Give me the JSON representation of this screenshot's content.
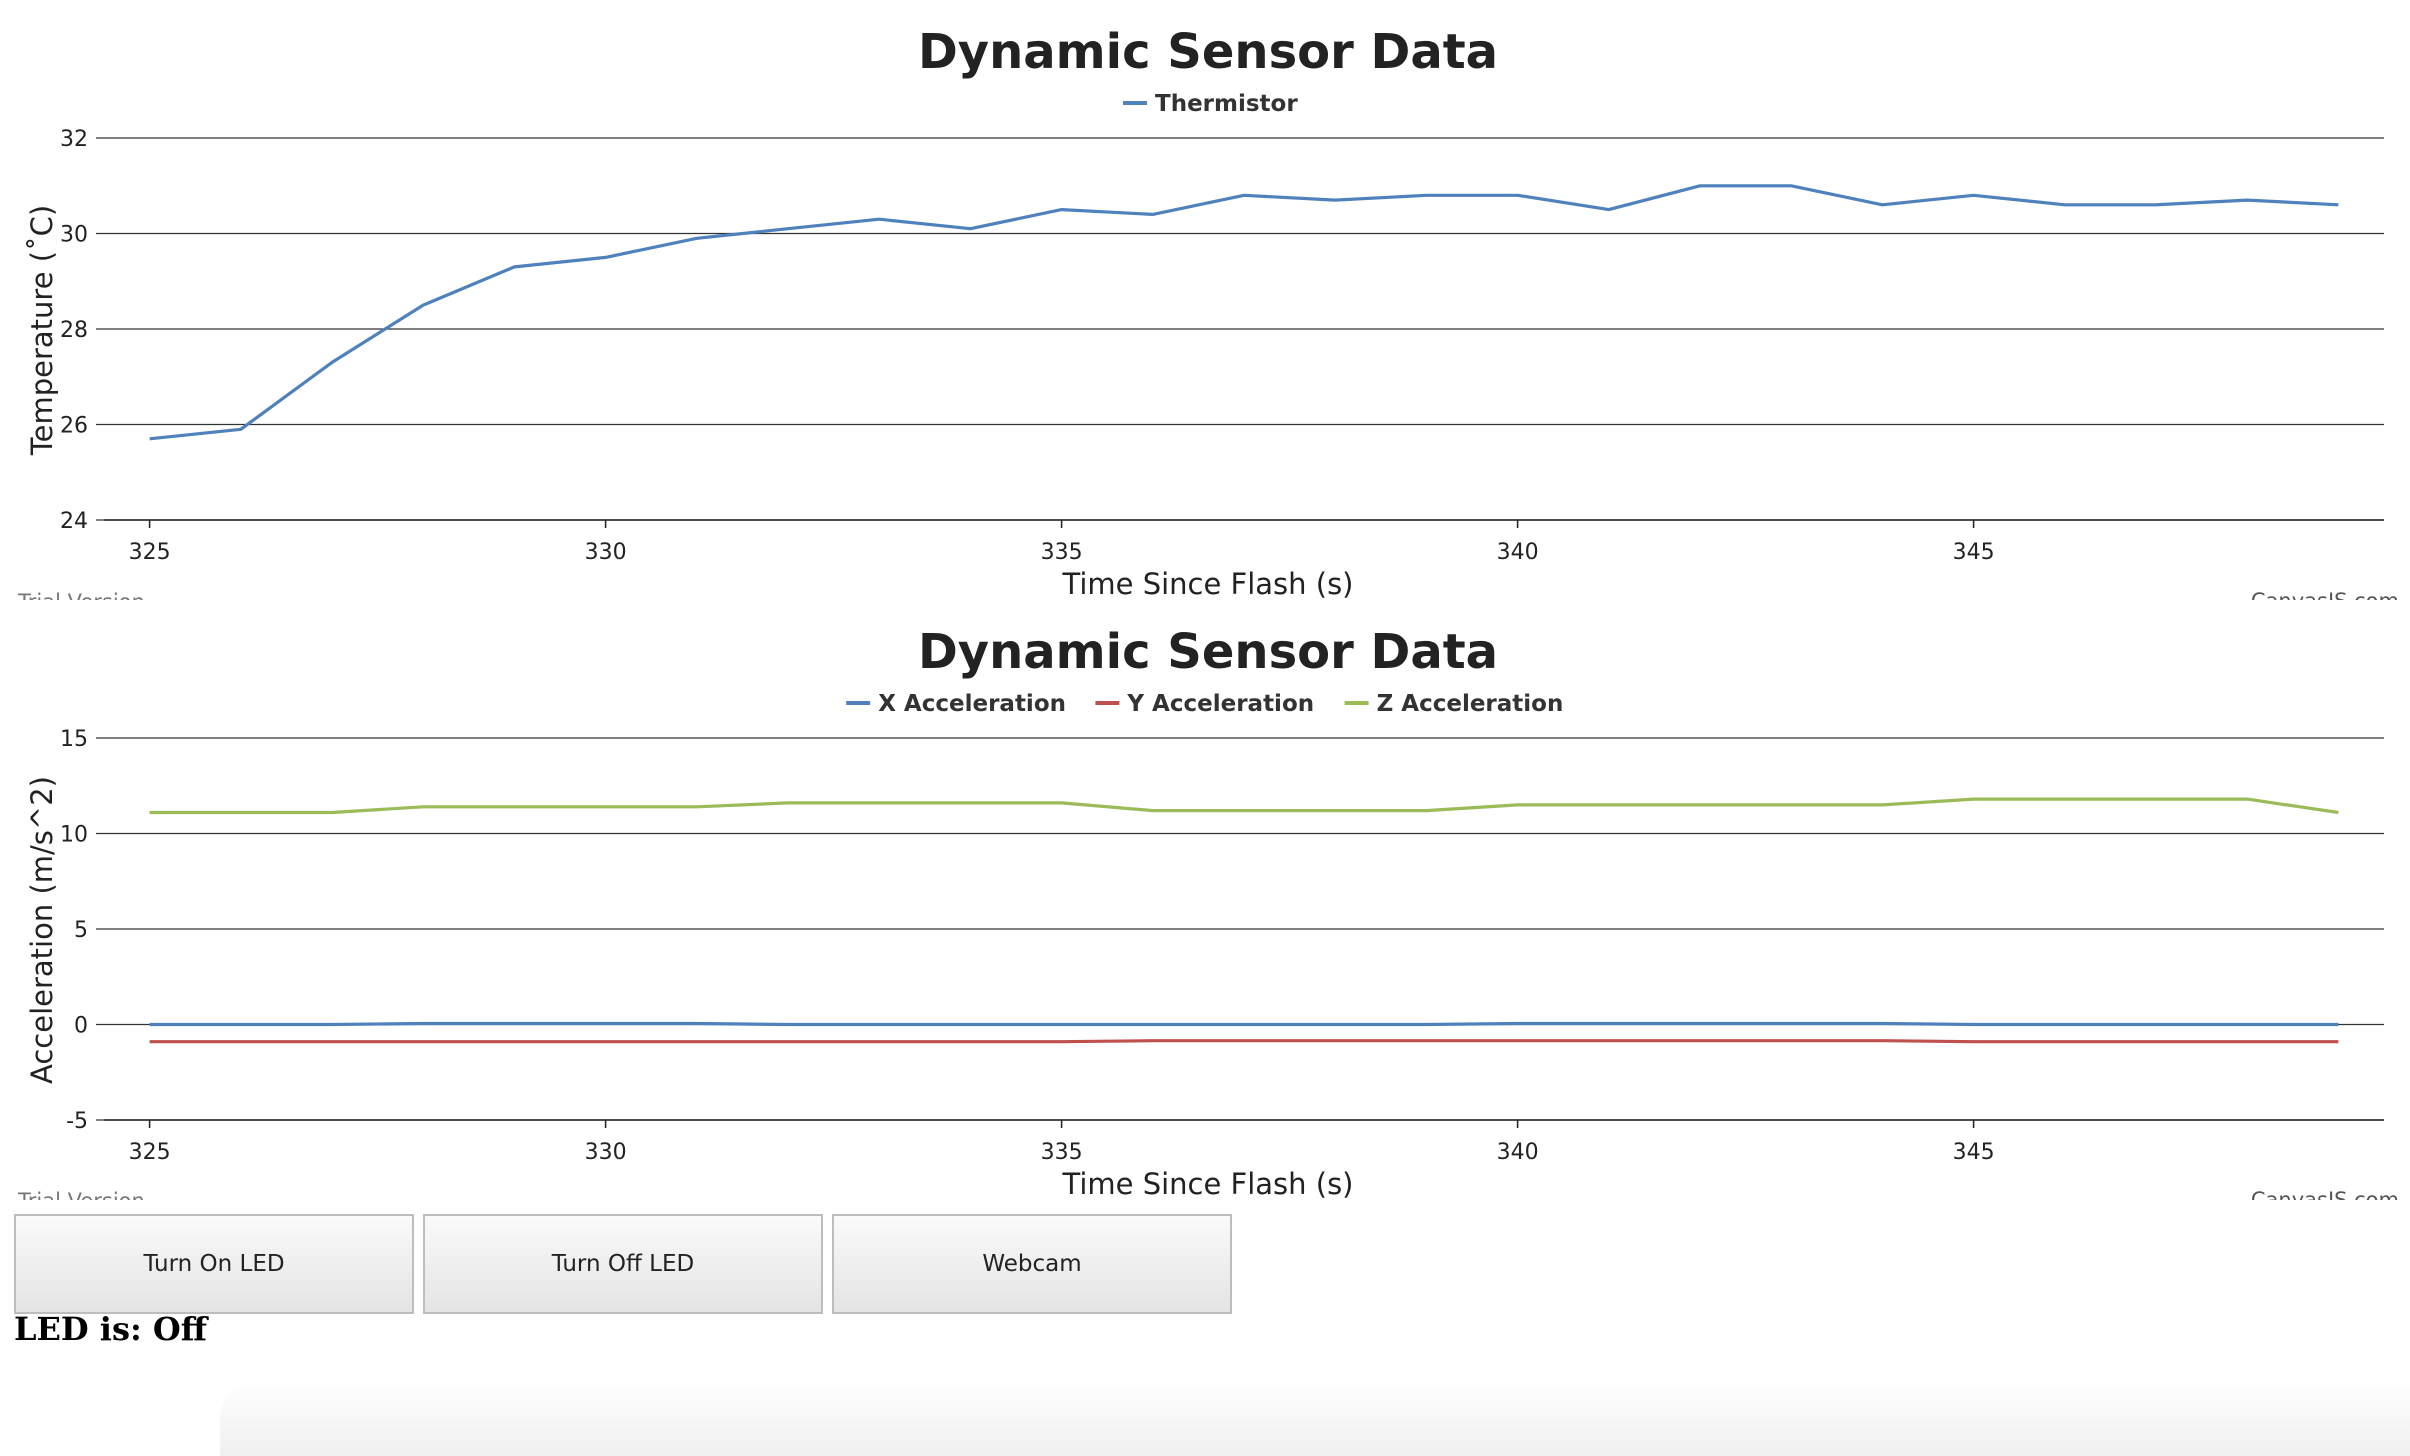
{
  "charts": [
    {
      "title": "Dynamic Sensor Data",
      "credit_left": "Trial Version",
      "credit_right": "CanvasJS.com",
      "chart_data": {
        "type": "line",
        "title": "Dynamic Sensor Data",
        "xlabel": "Time Since Flash (s)",
        "ylabel": "Temperature (˚C)",
        "xlim": [
          324.5,
          349.5
        ],
        "ylim": [
          24,
          32
        ],
        "x_ticks": [
          325,
          330,
          335,
          340,
          345
        ],
        "y_ticks": [
          24,
          26,
          28,
          30,
          32
        ],
        "grid": true,
        "legend_position": "top-center",
        "series": [
          {
            "name": "Thermistor",
            "color": "#4f81bc",
            "x": [
              325,
              326,
              327,
              328,
              329,
              330,
              331,
              332,
              333,
              334,
              335,
              336,
              337,
              338,
              339,
              340,
              341,
              342,
              343,
              344,
              345,
              346,
              347,
              348,
              349
            ],
            "y": [
              25.7,
              25.9,
              27.3,
              28.5,
              29.3,
              29.5,
              29.9,
              30.1,
              30.3,
              30.1,
              30.5,
              30.4,
              30.8,
              30.7,
              30.8,
              30.8,
              30.5,
              31.0,
              31.0,
              30.6,
              30.8,
              30.6,
              30.6,
              30.7,
              30.6
            ]
          }
        ]
      }
    },
    {
      "title": "Dynamic Sensor Data",
      "credit_left": "Trial Version",
      "credit_right": "CanvasJS.com",
      "chart_data": {
        "type": "line",
        "title": "Dynamic Sensor Data",
        "xlabel": "Time Since Flash (s)",
        "ylabel": "Acceleration (m/s^2)",
        "xlim": [
          324.5,
          349.5
        ],
        "ylim": [
          -5,
          15
        ],
        "x_ticks": [
          325,
          330,
          335,
          340,
          345
        ],
        "y_ticks": [
          -5,
          0,
          5,
          10,
          15
        ],
        "grid": true,
        "legend_position": "top-center",
        "series": [
          {
            "name": "X Acceleration",
            "color": "#4f81bc",
            "x": [
              325,
              326,
              327,
              328,
              329,
              330,
              331,
              332,
              333,
              334,
              335,
              336,
              337,
              338,
              339,
              340,
              341,
              342,
              343,
              344,
              345,
              346,
              347,
              348,
              349
            ],
            "y": [
              0.0,
              0.0,
              0.0,
              0.05,
              0.05,
              0.05,
              0.05,
              0.0,
              0.0,
              0.0,
              0.0,
              0.0,
              0.0,
              0.0,
              0.0,
              0.05,
              0.05,
              0.05,
              0.05,
              0.05,
              0.0,
              0.0,
              0.0,
              0.0,
              0.0
            ]
          },
          {
            "name": "Y Acceleration",
            "color": "#c0504e",
            "x": [
              325,
              326,
              327,
              328,
              329,
              330,
              331,
              332,
              333,
              334,
              335,
              336,
              337,
              338,
              339,
              340,
              341,
              342,
              343,
              344,
              345,
              346,
              347,
              348,
              349
            ],
            "y": [
              -0.9,
              -0.9,
              -0.9,
              -0.9,
              -0.9,
              -0.9,
              -0.9,
              -0.9,
              -0.9,
              -0.9,
              -0.9,
              -0.85,
              -0.85,
              -0.85,
              -0.85,
              -0.85,
              -0.85,
              -0.85,
              -0.85,
              -0.85,
              -0.9,
              -0.9,
              -0.9,
              -0.9,
              -0.9
            ]
          },
          {
            "name": "Z Acceleration",
            "color": "#9bbb58",
            "x": [
              325,
              326,
              327,
              328,
              329,
              330,
              331,
              332,
              333,
              334,
              335,
              336,
              337,
              338,
              339,
              340,
              341,
              342,
              343,
              344,
              345,
              346,
              347,
              348,
              349
            ],
            "y": [
              11.1,
              11.1,
              11.1,
              11.4,
              11.4,
              11.4,
              11.4,
              11.6,
              11.6,
              11.6,
              11.6,
              11.2,
              11.2,
              11.2,
              11.2,
              11.5,
              11.5,
              11.5,
              11.5,
              11.5,
              11.8,
              11.8,
              11.8,
              11.8,
              11.1
            ]
          }
        ]
      }
    }
  ],
  "buttons": {
    "turn_on": "Turn On LED",
    "turn_off": "Turn Off LED",
    "webcam": "Webcam"
  },
  "led_status": "LED is: Off"
}
